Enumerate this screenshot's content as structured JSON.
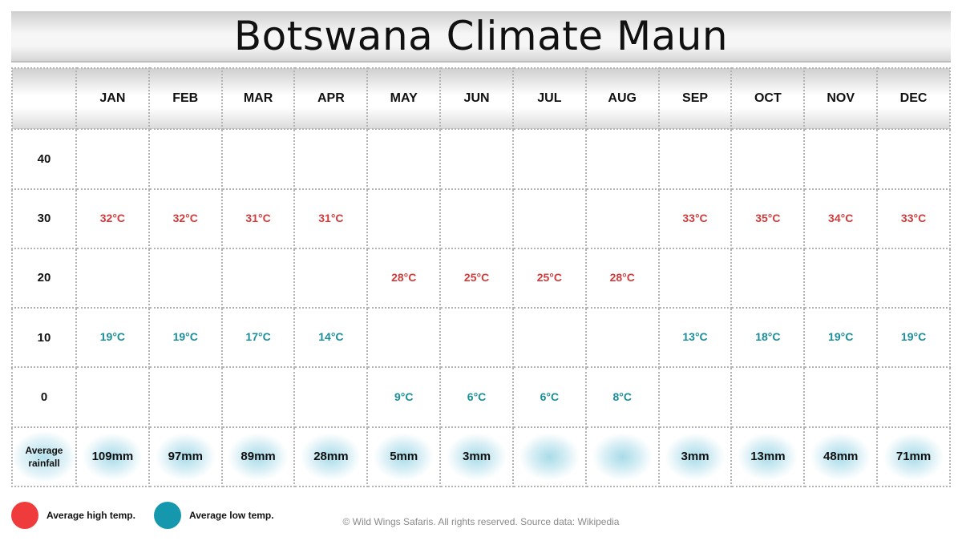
{
  "title": "Botswana Climate Maun",
  "months": [
    "JAN",
    "FEB",
    "MAR",
    "APR",
    "MAY",
    "JUN",
    "JUL",
    "AUG",
    "SEP",
    "OCT",
    "NOV",
    "DEC"
  ],
  "bands": [
    "40",
    "30",
    "20",
    "10",
    "0"
  ],
  "rainfall_label": "Average rainfall",
  "rainfall_display": [
    "109mm",
    "97mm",
    "89mm",
    "28mm",
    "5mm",
    "3mm",
    "",
    "",
    "3mm",
    "13mm",
    "48mm",
    "71mm"
  ],
  "legend": {
    "high_label": "Average high temp.",
    "low_label": "Average low temp.",
    "high_color": "#ef3b3b",
    "low_color": "#1598ad"
  },
  "copyright": "© Wild Wings Safaris. All rights reserved. Source data: Wikipedia",
  "chart_data": {
    "type": "table",
    "title": "Botswana Climate Maun",
    "categories": [
      "JAN",
      "FEB",
      "MAR",
      "APR",
      "MAY",
      "JUN",
      "JUL",
      "AUG",
      "SEP",
      "OCT",
      "NOV",
      "DEC"
    ],
    "y_bands": [
      40,
      30,
      20,
      10,
      0
    ],
    "unit": "°C",
    "series": [
      {
        "name": "Average high temp.",
        "color": "#d23b3b",
        "values": [
          32,
          32,
          31,
          31,
          28,
          25,
          25,
          28,
          33,
          35,
          34,
          33
        ]
      },
      {
        "name": "Average low temp.",
        "color": "#1a8f9a",
        "values": [
          19,
          19,
          17,
          14,
          9,
          6,
          6,
          8,
          13,
          18,
          19,
          19
        ]
      },
      {
        "name": "Average rainfall",
        "unit": "mm",
        "values": [
          109,
          97,
          89,
          28,
          5,
          3,
          null,
          null,
          3,
          13,
          48,
          71
        ]
      }
    ]
  }
}
